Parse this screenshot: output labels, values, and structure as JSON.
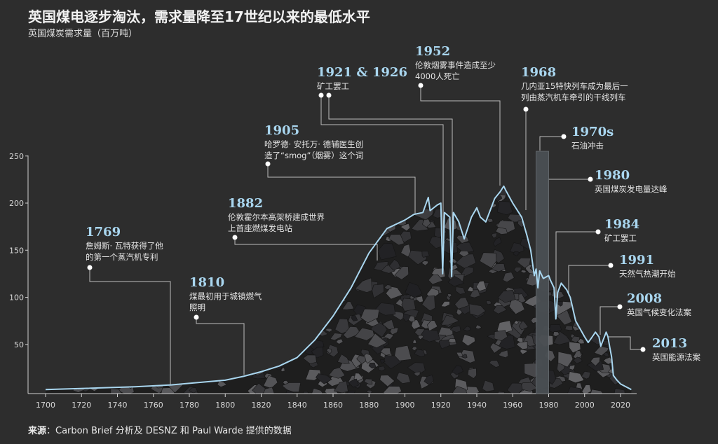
{
  "header": {
    "title": "英国煤电逐步淘汰，需求量降至17世纪以来的最低水平",
    "subtitle": "英国煤炭需求量（百万吨）"
  },
  "footer": {
    "source_label": "来源",
    "source_text": "：Carbon Brief 分析及 DESNZ 和 Paul Warde 提供的数据"
  },
  "chart_data": {
    "type": "area",
    "title": "英国煤电逐步淘汰，需求量降至17世纪以来的最低水平",
    "ylabel": "英国煤炭需求量（百万吨）",
    "xlabel": "",
    "xlim": [
      1700,
      2026
    ],
    "ylim": [
      0,
      250
    ],
    "xticks": [
      1700,
      1720,
      1740,
      1760,
      1780,
      1800,
      1820,
      1840,
      1860,
      1880,
      1900,
      1920,
      1940,
      1960,
      1980,
      2000,
      2020
    ],
    "yticks": [
      50,
      100,
      150,
      200,
      250
    ],
    "line_color": "#a9d6ef",
    "highlight": {
      "label": "1970s",
      "from": 1973,
      "to": 1980,
      "value": 255
    },
    "series": [
      {
        "name": "英国煤炭需求量",
        "x": [
          1700,
          1750,
          1770,
          1800,
          1810,
          1820,
          1830,
          1840,
          1850,
          1860,
          1870,
          1880,
          1890,
          1900,
          1905,
          1910,
          1913,
          1914,
          1918,
          1920,
          1921,
          1922,
          1925,
          1926,
          1927,
          1930,
          1933,
          1937,
          1940,
          1942,
          1945,
          1950,
          1953,
          1955,
          1956,
          1960,
          1965,
          1968,
          1970,
          1972,
          1973,
          1974,
          1975,
          1977,
          1980,
          1981,
          1983,
          1984,
          1985,
          1987,
          1990,
          1992,
          1995,
          2000,
          2002,
          2005,
          2006,
          2008,
          2009,
          2012,
          2013,
          2014,
          2015,
          2016,
          2018,
          2020,
          2023,
          2026
        ],
        "y": [
          2,
          5,
          7,
          12,
          16,
          21,
          27,
          36,
          55,
          80,
          110,
          147,
          173,
          182,
          188,
          190,
          206,
          192,
          198,
          200,
          125,
          190,
          185,
          122,
          190,
          180,
          162,
          185,
          195,
          185,
          180,
          205,
          212,
          218,
          214,
          200,
          185,
          165,
          150,
          123,
          130,
          110,
          128,
          120,
          123,
          118,
          110,
          77,
          105,
          115,
          108,
          100,
          75,
          58,
          52,
          60,
          63,
          58,
          48,
          63,
          58,
          47,
          37,
          17,
          12,
          8,
          5,
          2
        ]
      }
    ],
    "annotations": [
      {
        "year": "1769",
        "text": [
          "詹姆斯· 瓦特获得了他",
          "的第一个蒸汽机专利"
        ]
      },
      {
        "year": "1810",
        "text": [
          "煤最初用于城镇燃气",
          "照明"
        ]
      },
      {
        "year": "1882",
        "text": [
          "伦敦霍尔本高架桥建成世界",
          "上首座燃煤发电站"
        ]
      },
      {
        "year": "1905",
        "text": [
          "哈罗德· 安托万· 德辅医生创",
          "造了“smog”（烟雾）这个词"
        ]
      },
      {
        "year": "1921 & 1926",
        "text": [
          "矿工罢工"
        ]
      },
      {
        "year": "1952",
        "text": [
          "伦敦烟雾事件造成至少",
          "4000人死亡"
        ]
      },
      {
        "year": "1968",
        "text": [
          "几内亚15特快列车成为最后一",
          "列由蒸汽机车牵引的干线列车"
        ]
      },
      {
        "year": "1970s",
        "text": [
          "石油冲击"
        ]
      },
      {
        "year": "1980",
        "text": [
          "英国煤炭发电量达峰"
        ]
      },
      {
        "year": "1984",
        "text": [
          "矿工罢工"
        ]
      },
      {
        "year": "1991",
        "text": [
          "天然气热潮开始"
        ]
      },
      {
        "year": "2008",
        "text": [
          "英国气候变化法案"
        ]
      },
      {
        "year": "2013",
        "text": [
          "英国能源法案"
        ]
      }
    ]
  }
}
